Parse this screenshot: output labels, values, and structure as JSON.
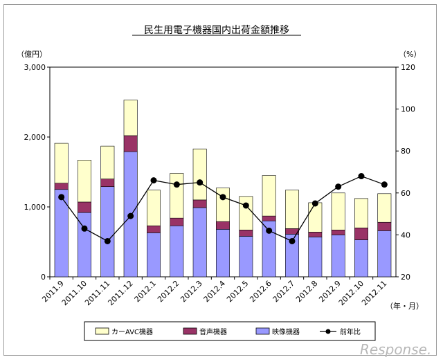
{
  "chart_data": {
    "type": "bar",
    "title": "民生用電子機器国内出荷金額推移",
    "left_unit": "（億円）",
    "right_unit": "（%）",
    "x_unit": "（年・月）",
    "categories": [
      "2011.9",
      "2011.10",
      "2011.11",
      "2011.12",
      "2012.1",
      "2012.2",
      "2012.3",
      "2012.4",
      "2012.5",
      "2012.6",
      "2012.7",
      "2012.8",
      "2012.9",
      "2012.10",
      "2012.11"
    ],
    "ylim": [
      0,
      3000
    ],
    "yticks": [
      "0",
      "1,000",
      "2,000",
      "3,000"
    ],
    "y2lim": [
      20,
      120
    ],
    "y2ticks": [
      "20",
      "40",
      "60",
      "80",
      "100",
      "120"
    ],
    "series": [
      {
        "name": "映像機器",
        "color": "#9999ff",
        "values": [
          1250,
          920,
          1290,
          1790,
          630,
          730,
          990,
          680,
          580,
          800,
          610,
          570,
          600,
          530,
          660
        ]
      },
      {
        "name": "音声機器",
        "color": "#993366",
        "values": [
          90,
          150,
          110,
          230,
          100,
          110,
          110,
          110,
          90,
          70,
          80,
          70,
          70,
          170,
          120
        ]
      },
      {
        "name": "カーAVC機器",
        "color": "#ffffcc",
        "values": [
          570,
          600,
          470,
          510,
          510,
          640,
          730,
          480,
          480,
          580,
          550,
          420,
          530,
          420,
          410
        ]
      }
    ],
    "line": {
      "name": "前年比",
      "color": "#000000",
      "axis": "right",
      "values": [
        58,
        43,
        37,
        49,
        66,
        64,
        65,
        58,
        54,
        42,
        37,
        55,
        63,
        68,
        64
      ]
    },
    "legend": [
      "カーAVC機器",
      "音声機器",
      "映像機器",
      "前年比"
    ]
  },
  "watermark": {
    "text": "Response."
  }
}
